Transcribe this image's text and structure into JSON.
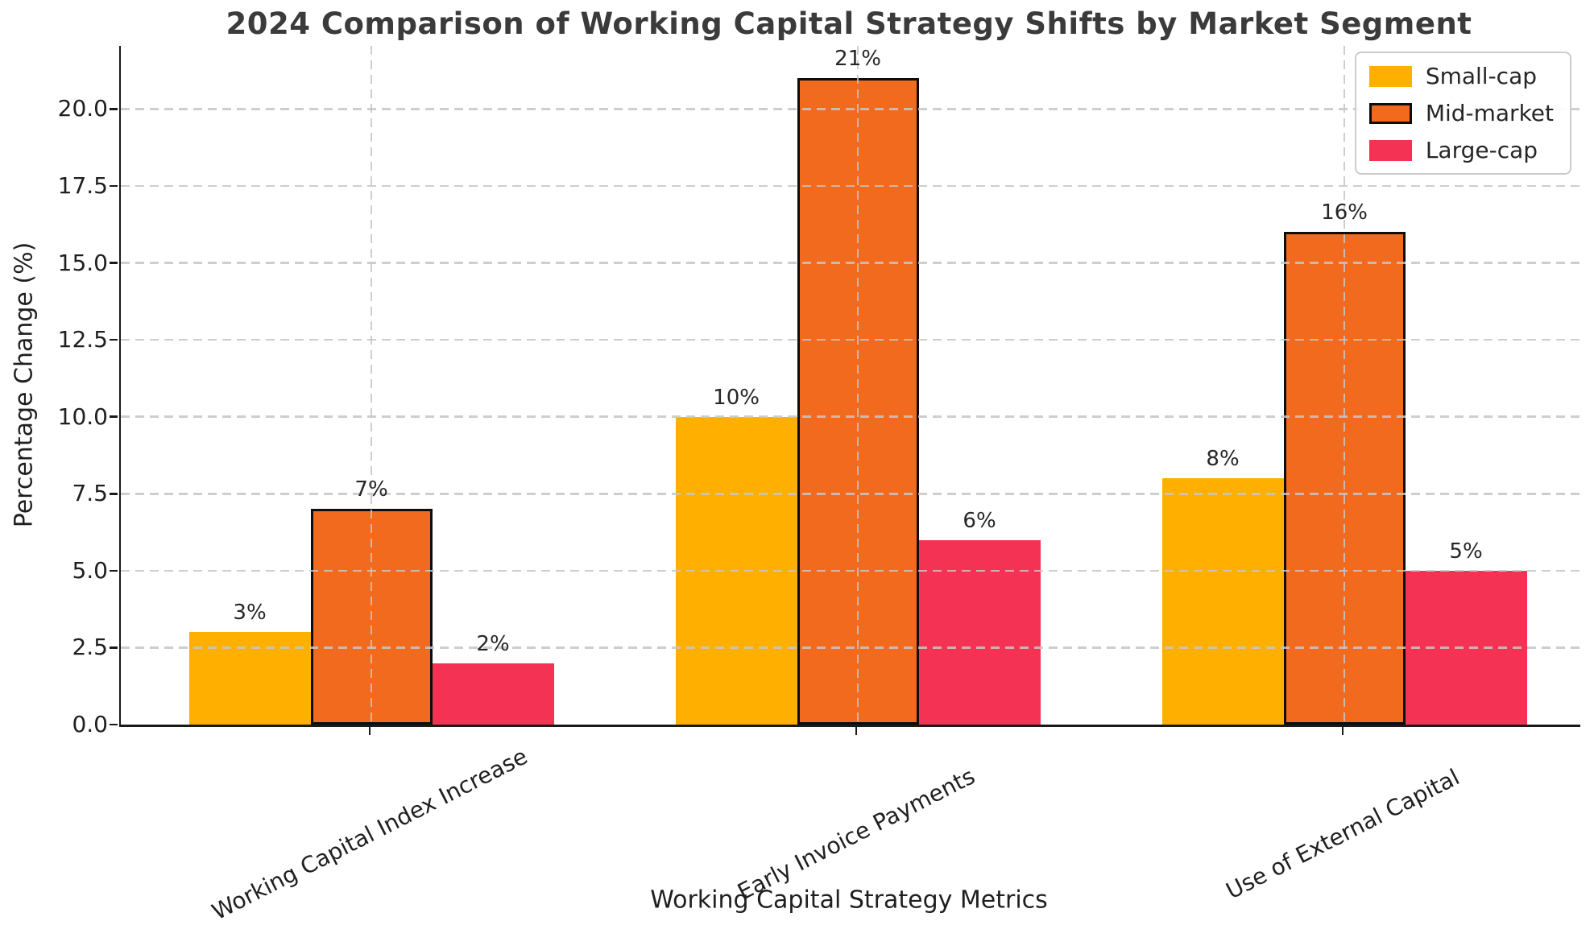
{
  "chart_data": {
    "type": "bar",
    "title": "2024 Comparison of Working Capital Strategy Shifts by Market Segment",
    "xlabel": "Working Capital Strategy Metrics",
    "ylabel": "Percentage Change (%)",
    "categories": [
      "Working Capital Index Increase",
      "Early Invoice Payments",
      "Use of External Capital"
    ],
    "series": [
      {
        "name": "Small-cap",
        "color": "#FFAF00",
        "edge_color": null,
        "values": [
          3,
          10,
          8
        ],
        "labels": [
          "3%",
          "10%",
          "8%"
        ]
      },
      {
        "name": "Mid-market",
        "color": "#F26A1E",
        "edge_color": "#0D0D0D",
        "values": [
          7,
          21,
          16
        ],
        "labels": [
          "7%",
          "21%",
          "16%"
        ]
      },
      {
        "name": "Large-cap",
        "color": "#F43354",
        "edge_color": null,
        "values": [
          2,
          6,
          5
        ],
        "labels": [
          "2%",
          "6%",
          "5%"
        ]
      }
    ],
    "yticks": {
      "values": [
        0,
        2.5,
        5,
        7.5,
        10,
        12.5,
        15,
        17.5,
        20
      ],
      "labels": [
        "0.0",
        "2.5",
        "5.0",
        "7.5",
        "10.0",
        "12.5",
        "15.0",
        "17.5",
        "20.0"
      ]
    },
    "ylim": [
      0,
      22.05
    ],
    "grid": {
      "style": "dashed",
      "color": "#C6C6C6",
      "drawn_over_bars": true
    },
    "legend": {
      "position": "upper right",
      "entries": [
        "Small-cap",
        "Mid-market",
        "Large-cap"
      ]
    },
    "colors": {
      "title": "#3B3B3B",
      "text": "#1F1F1F",
      "spine": "#1A1A1A"
    }
  }
}
